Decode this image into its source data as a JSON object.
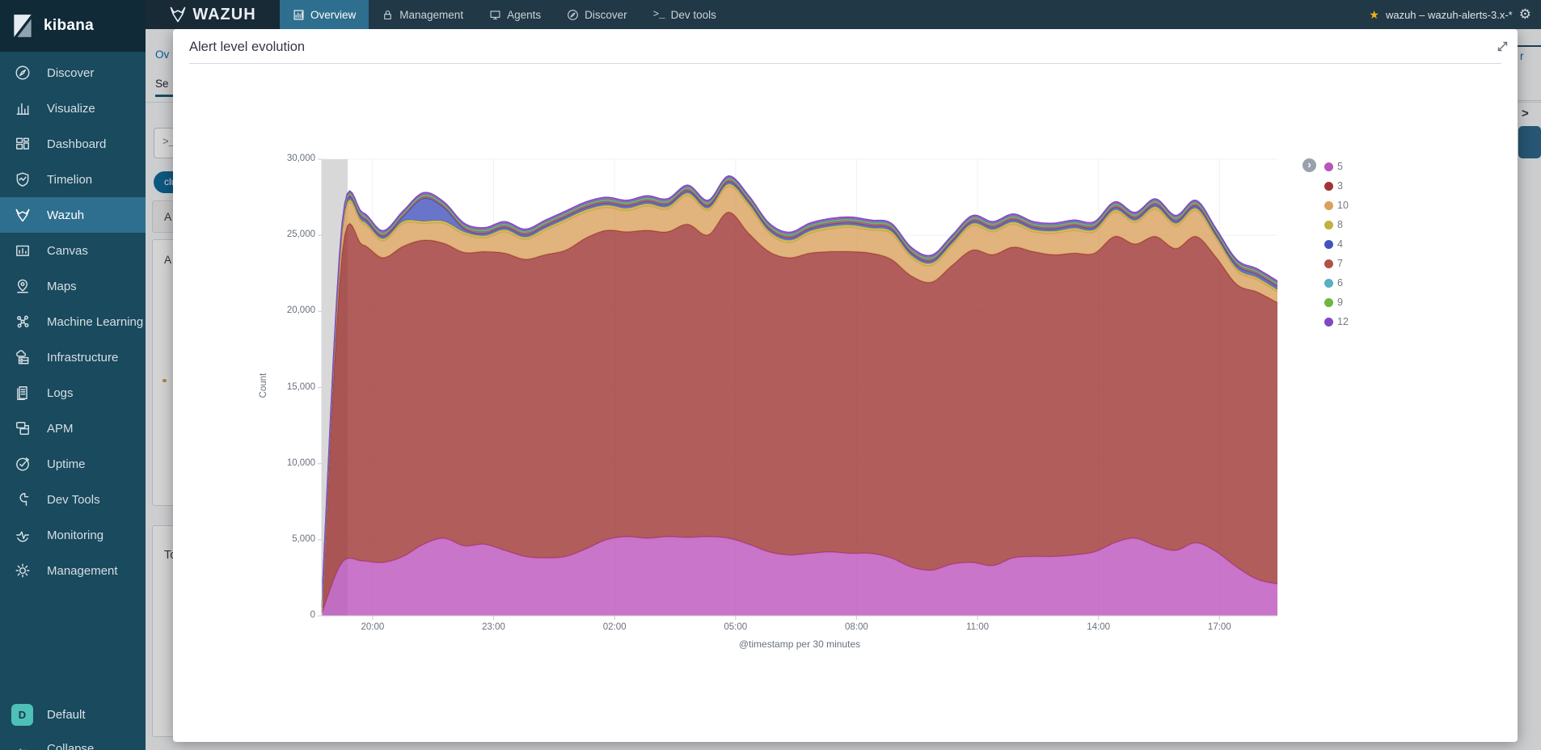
{
  "navbar": {
    "brand": "WAZUH",
    "items": [
      {
        "label": "Overview",
        "icon": "overview-icon",
        "active": true
      },
      {
        "label": "Management",
        "icon": "management-nav-icon",
        "active": false
      },
      {
        "label": "Agents",
        "icon": "agents-icon",
        "active": false
      },
      {
        "label": "Discover",
        "icon": "discover-nav-icon",
        "active": false
      },
      {
        "label": "Dev tools",
        "icon": "dev-tools-nav-icon",
        "active": false
      }
    ],
    "index_pattern": "wazuh – wazuh-alerts-3.x-*",
    "star_icon": "star-icon",
    "gear_icon": "gear-icon"
  },
  "sidebar": {
    "logo_text": "kibana",
    "items": [
      {
        "label": "Discover",
        "icon": "discover-icon",
        "selected": false
      },
      {
        "label": "Visualize",
        "icon": "visualize-icon",
        "selected": false
      },
      {
        "label": "Dashboard",
        "icon": "dashboard-icon",
        "selected": false
      },
      {
        "label": "Timelion",
        "icon": "timelion-icon",
        "selected": false
      },
      {
        "label": "Wazuh",
        "icon": "wazuh-icon",
        "selected": true
      },
      {
        "label": "Canvas",
        "icon": "canvas-icon",
        "selected": false
      },
      {
        "label": "Maps",
        "icon": "maps-icon",
        "selected": false
      },
      {
        "label": "Machine Learning",
        "icon": "machine-learning-icon",
        "selected": false
      },
      {
        "label": "Infrastructure",
        "icon": "infrastructure-icon",
        "selected": false
      },
      {
        "label": "Logs",
        "icon": "logs-icon",
        "selected": false
      },
      {
        "label": "APM",
        "icon": "apm-icon",
        "selected": false
      },
      {
        "label": "Uptime",
        "icon": "uptime-icon",
        "selected": false
      },
      {
        "label": "Dev Tools",
        "icon": "dev-tools-icon",
        "selected": false
      },
      {
        "label": "Monitoring",
        "icon": "monitoring-icon",
        "selected": false
      },
      {
        "label": "Management",
        "icon": "management-icon",
        "selected": false
      }
    ],
    "space_avatar": "D",
    "space_label": "Default",
    "collapse_label": "Collapse"
  },
  "modal": {
    "title": "Alert level evolution",
    "expand_icon": "expand-diagonal-icon"
  },
  "background_fragments": {
    "breadcrumb": "Ov",
    "tab": "Se",
    "query_prompt": ">_",
    "filter_pill": "clu",
    "panel_a1": "A",
    "panel_a2": "A",
    "panel_t": "To",
    "right_link": "r",
    "right_chevron": ">"
  },
  "chart_data": {
    "type": "area",
    "stacked": true,
    "title": "Alert level evolution",
    "xlabel": "@timestamp per 30 minutes",
    "ylabel": "Count",
    "ylim": [
      0,
      30000
    ],
    "ytick_step": 5000,
    "ytick_labels": [
      "0",
      "5,000",
      "10,000",
      "15,000",
      "20,000",
      "25,000",
      "30,000"
    ],
    "xtick_labels": [
      "20:00",
      "23:00",
      "02:00",
      "05:00",
      "08:00",
      "11:00",
      "14:00",
      "17:00"
    ],
    "xtick_index_positions": [
      2.5,
      8.45,
      14.4,
      20.35,
      26.3,
      32.25,
      38.2,
      44.15
    ],
    "bucket_count": 48,
    "grid": true,
    "legend_position": "right",
    "partial_bucket_endzone": true,
    "series": [
      {
        "name": "5",
        "color": "#bc52bc",
        "values": [
          150,
          3500,
          3600,
          3500,
          3900,
          4700,
          5100,
          4600,
          4700,
          4300,
          3900,
          3800,
          3900,
          4400,
          5000,
          5200,
          5100,
          5200,
          5150,
          5200,
          5100,
          4700,
          4200,
          4000,
          4100,
          4200,
          4100,
          4100,
          3800,
          3200,
          3000,
          3400,
          3500,
          3300,
          3800,
          3900,
          3900,
          4000,
          4200,
          4800,
          5100,
          4600,
          4300,
          4800,
          4200,
          3200,
          2400,
          2100
        ]
      },
      {
        "name": "3",
        "color": "#9e3533",
        "values": [
          100,
          20330,
          20780,
          20030,
          20380,
          19980,
          19380,
          19280,
          19230,
          19530,
          19530,
          19930,
          20130,
          20430,
          20330,
          20030,
          20230,
          20030,
          20580,
          19830,
          21430,
          20430,
          19730,
          19530,
          19730,
          19730,
          19830,
          19730,
          19630,
          19130,
          18930,
          19630,
          20530,
          20430,
          20430,
          20030,
          19830,
          19830,
          19630,
          20130,
          19330,
          20330,
          19830,
          20130,
          19330,
          18580,
          18880,
          18480
        ]
      },
      {
        "name": "10",
        "color": "#daa05d",
        "values": [
          100,
          1300,
          1400,
          1100,
          1500,
          1100,
          1300,
          1200,
          900,
          1400,
          1300,
          1600,
          1900,
          1700,
          1500,
          1400,
          1600,
          1500,
          1900,
          1600,
          1700,
          1800,
          1200,
          1000,
          1300,
          1500,
          1600,
          1500,
          1700,
          1200,
          1100,
          1300,
          1600,
          1500,
          1500,
          1300,
          1400,
          1500,
          1400,
          1600,
          1400,
          1800,
          1500,
          1700,
          1200,
          900,
          800,
          700
        ]
      },
      {
        "name": "8",
        "color": "#c0b23f",
        "const": 150
      },
      {
        "name": "4",
        "color": "#4353bd",
        "values": [
          30,
          150,
          200,
          150,
          300,
          1500,
          900,
          200,
          150,
          150,
          150,
          150,
          150,
          150,
          150,
          150,
          150,
          150,
          150,
          150,
          150,
          150,
          150,
          150,
          150,
          150,
          150,
          150,
          150,
          150,
          150,
          150,
          150,
          150,
          150,
          150,
          150,
          150,
          150,
          150,
          150,
          150,
          150,
          150,
          150,
          200,
          200,
          200
        ]
      },
      {
        "name": "7",
        "color": "#af5346",
        "const": 120
      },
      {
        "name": "6",
        "color": "#58b0c1",
        "const": 60
      },
      {
        "name": "9",
        "color": "#6cb73d",
        "const": 60
      },
      {
        "name": "12",
        "color": "#8247c5",
        "const": 130
      }
    ]
  }
}
